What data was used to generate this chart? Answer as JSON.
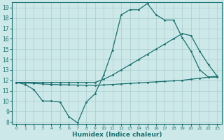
{
  "xlabel": "Humidex (Indice chaleur)",
  "xlim": [
    -0.5,
    23.5
  ],
  "ylim": [
    7.8,
    19.5
  ],
  "yticks": [
    8,
    9,
    10,
    11,
    12,
    13,
    14,
    15,
    16,
    17,
    18,
    19
  ],
  "xticks": [
    0,
    1,
    2,
    3,
    4,
    5,
    6,
    7,
    8,
    9,
    10,
    11,
    12,
    13,
    14,
    15,
    16,
    17,
    18,
    19,
    20,
    21,
    22,
    23
  ],
  "background_color": "#cde8e8",
  "grid_color": "#aacccc",
  "line_color": "#1a7070",
  "lineA_x": [
    0,
    1,
    2,
    3,
    4,
    5,
    6,
    7,
    8,
    9,
    10,
    11,
    12,
    13,
    14,
    15,
    16,
    17,
    18,
    19,
    20,
    21,
    22,
    23
  ],
  "lineA_y": [
    11.8,
    11.6,
    11.1,
    10.0,
    10.0,
    9.9,
    8.5,
    7.9,
    9.9,
    10.7,
    12.5,
    14.9,
    18.3,
    18.8,
    18.8,
    19.4,
    18.3,
    17.8,
    17.8,
    16.1,
    14.8,
    13.0,
    12.3,
    12.3
  ],
  "lineB_x": [
    0,
    1,
    2,
    3,
    4,
    5,
    6,
    7,
    8,
    9,
    10,
    11,
    12,
    13,
    14,
    15,
    16,
    17,
    18,
    19,
    20,
    21,
    22,
    23
  ],
  "lineB_y": [
    11.8,
    11.8,
    11.8,
    11.8,
    11.8,
    11.8,
    11.8,
    11.8,
    11.8,
    11.8,
    12.1,
    12.5,
    13.0,
    13.5,
    14.0,
    14.5,
    15.0,
    15.5,
    16.0,
    16.5,
    16.3,
    14.8,
    13.5,
    12.4
  ],
  "lineC_x": [
    0,
    1,
    2,
    3,
    4,
    5,
    6,
    7,
    8,
    9,
    10,
    11,
    12,
    13,
    14,
    15,
    16,
    17,
    18,
    19,
    20,
    21,
    22,
    23
  ],
  "lineC_y": [
    11.8,
    11.75,
    11.7,
    11.65,
    11.6,
    11.58,
    11.56,
    11.54,
    11.52,
    11.52,
    11.55,
    11.6,
    11.65,
    11.7,
    11.75,
    11.8,
    11.85,
    11.9,
    11.95,
    12.0,
    12.1,
    12.2,
    12.3,
    12.4
  ]
}
